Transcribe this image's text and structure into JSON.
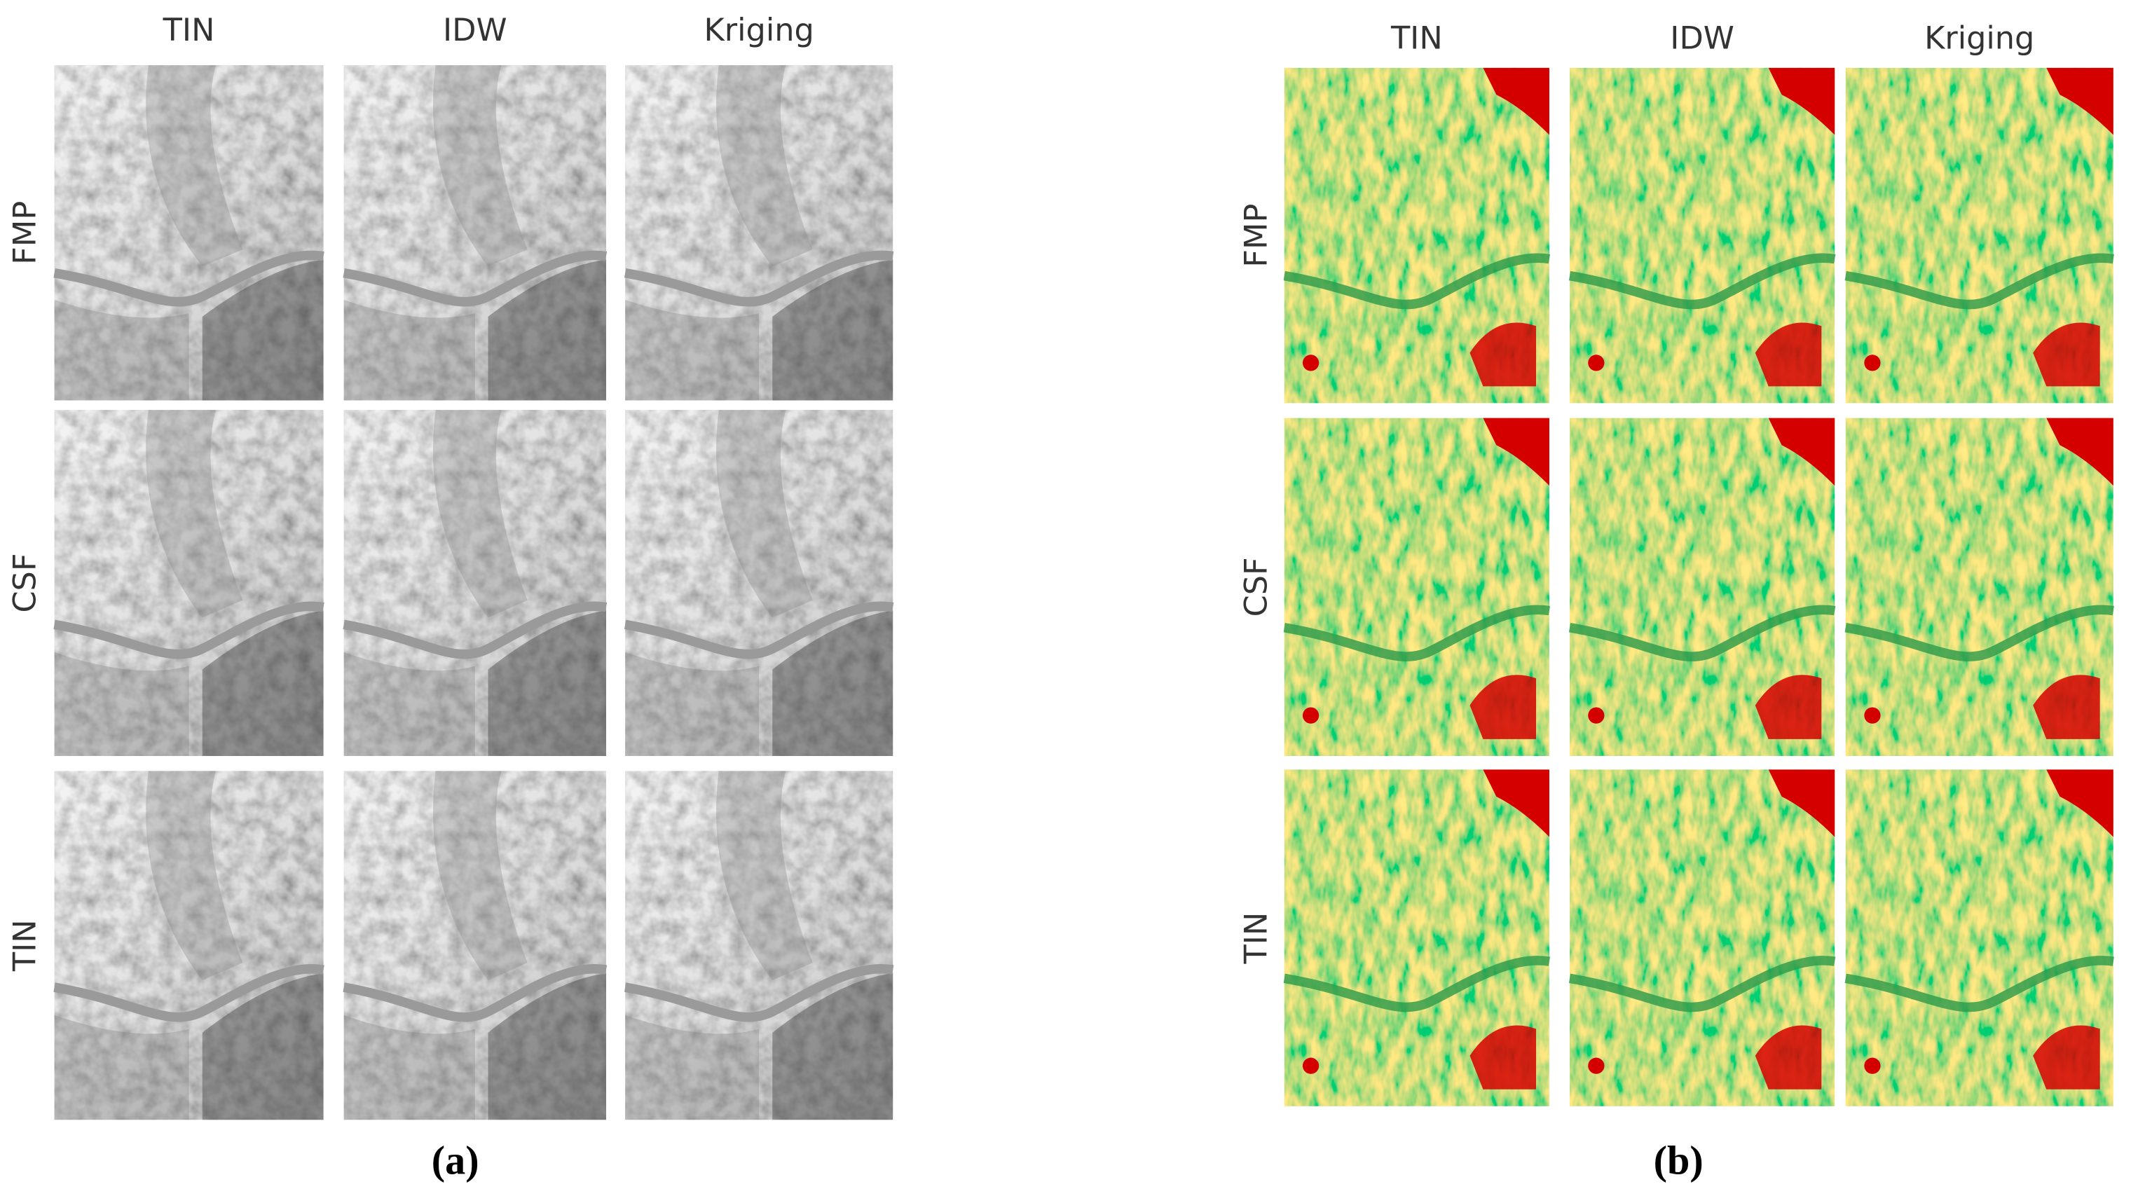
{
  "panels": [
    {
      "columns": [
        "TIN",
        "IDW",
        "Kriging"
      ],
      "rows": [
        "FMP",
        "CSF",
        "TIN"
      ],
      "caption": "(a)"
    },
    {
      "columns": [
        "TIN",
        "IDW",
        "Kriging"
      ],
      "rows": [
        "FMP",
        "CSF",
        "TIN"
      ],
      "caption": "(b)"
    }
  ]
}
